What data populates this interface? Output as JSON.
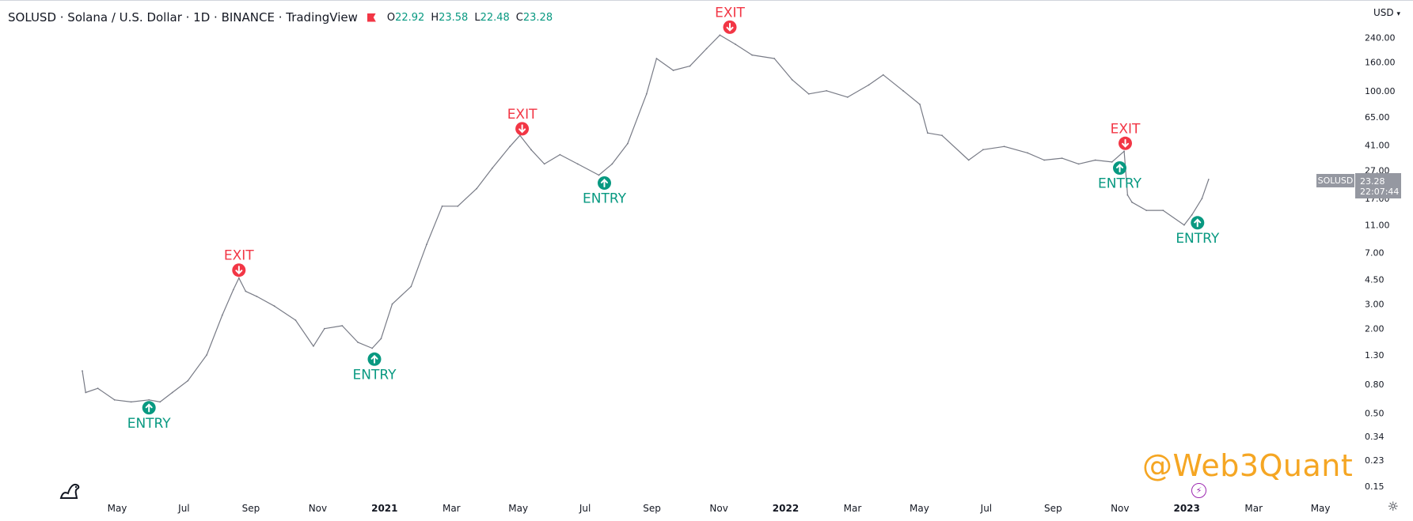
{
  "header": {
    "title": "SOLUSD · Solana / U.S. Dollar · 1D · BINANCE · TradingView",
    "open_label": "O",
    "open": "22.92",
    "high_label": "H",
    "high": "23.58",
    "low_label": "L",
    "low": "22.48",
    "close_label": "C",
    "close": "23.28"
  },
  "currency_menu": "USD",
  "watermark": "@Web3Quant",
  "price_tag": {
    "symbol": "SOLUSD",
    "price": "23.28",
    "countdown": "22:07:44"
  },
  "colors": {
    "entry": "#089981",
    "exit": "#f23645",
    "candles": "#787b86",
    "watermark": "#f5a623",
    "tag": "#9598a1"
  },
  "chart_data": {
    "type": "line",
    "scale": "log",
    "x_ticks": [
      "May",
      "Jul",
      "Sep",
      "Nov",
      "2021",
      "Mar",
      "May",
      "Jul",
      "Sep",
      "Nov",
      "2022",
      "Mar",
      "May",
      "Jul",
      "Sep",
      "Nov",
      "2023",
      "Mar",
      "May"
    ],
    "x_tick_bold": [
      false,
      false,
      false,
      false,
      true,
      false,
      false,
      false,
      false,
      false,
      true,
      false,
      false,
      false,
      false,
      false,
      true,
      false,
      false
    ],
    "y_ticks": [
      "240.00",
      "160.00",
      "100.00",
      "65.00",
      "41.00",
      "27.00",
      "17.00",
      "11.00",
      "7.00",
      "4.50",
      "3.00",
      "2.00",
      "1.30",
      "0.80",
      "0.50",
      "0.34",
      "0.23",
      "0.15"
    ],
    "y_range": [
      0.13,
      330
    ],
    "x_range": [
      "2020-04-11",
      "2023-06-01"
    ],
    "series": [
      {
        "x": [
          "2020-04-11",
          "2020-04-14",
          "2020-04-25",
          "2020-05-10",
          "2020-05-25",
          "2020-06-10",
          "2020-06-20",
          "2020-07-01",
          "2020-07-15",
          "2020-08-01",
          "2020-08-15",
          "2020-08-25",
          "2020-08-30",
          "2020-09-05",
          "2020-09-15",
          "2020-10-01",
          "2020-10-20",
          "2020-11-05",
          "2020-11-15",
          "2020-12-01",
          "2020-12-15",
          "2020-12-28",
          "2021-01-05",
          "2021-01-15",
          "2021-02-01",
          "2021-02-15",
          "2021-03-01",
          "2021-03-15",
          "2021-04-01",
          "2021-04-15",
          "2021-05-01",
          "2021-05-10",
          "2021-05-20",
          "2021-06-01",
          "2021-06-15",
          "2021-07-01",
          "2021-07-20",
          "2021-08-01",
          "2021-08-15",
          "2021-09-01",
          "2021-09-10",
          "2021-09-25",
          "2021-10-10",
          "2021-10-25",
          "2021-11-06",
          "2021-11-20",
          "2021-12-05",
          "2021-12-25",
          "2022-01-10",
          "2022-01-25",
          "2022-02-10",
          "2022-03-01",
          "2022-03-20",
          "2022-04-02",
          "2022-04-20",
          "2022-05-05",
          "2022-05-12",
          "2022-05-25",
          "2022-06-18",
          "2022-07-01",
          "2022-07-20",
          "2022-08-10",
          "2022-08-25",
          "2022-09-10",
          "2022-09-25",
          "2022-10-10",
          "2022-10-25",
          "2022-11-05",
          "2022-11-08",
          "2022-11-12",
          "2022-11-25",
          "2022-12-10",
          "2022-12-29",
          "2023-01-05",
          "2023-01-14",
          "2023-01-20"
        ],
        "y": [
          1.0,
          0.7,
          0.75,
          0.62,
          0.6,
          0.62,
          0.6,
          0.7,
          0.85,
          1.3,
          2.5,
          3.8,
          4.6,
          3.7,
          3.4,
          2.9,
          2.3,
          1.5,
          2.0,
          2.1,
          1.6,
          1.45,
          1.7,
          3.0,
          4.0,
          8.0,
          15,
          15,
          20,
          28,
          40,
          48,
          38,
          30,
          35,
          30,
          25,
          30,
          42,
          95,
          170,
          140,
          150,
          200,
          250,
          215,
          180,
          170,
          120,
          95,
          100,
          90,
          110,
          130,
          100,
          80,
          50,
          48,
          32,
          38,
          40,
          36,
          32,
          33,
          30,
          32,
          31,
          37,
          18,
          16,
          14,
          14,
          11,
          13,
          17,
          23.28
        ]
      }
    ],
    "markers": [
      {
        "kind": "ENTRY",
        "date": "2020-06-10",
        "price": 0.62
      },
      {
        "kind": "EXIT",
        "date": "2020-08-30",
        "price": 4.6
      },
      {
        "kind": "ENTRY",
        "date": "2020-12-30",
        "price": 1.38
      },
      {
        "kind": "EXIT",
        "date": "2021-05-12",
        "price": 47
      },
      {
        "kind": "ENTRY",
        "date": "2021-07-25",
        "price": 25
      },
      {
        "kind": "EXIT",
        "date": "2021-11-15",
        "price": 250
      },
      {
        "kind": "ENTRY",
        "date": "2022-11-01",
        "price": 32
      },
      {
        "kind": "EXIT",
        "date": "2022-11-06",
        "price": 37
      },
      {
        "kind": "ENTRY",
        "date": "2023-01-10",
        "price": 13
      }
    ]
  }
}
